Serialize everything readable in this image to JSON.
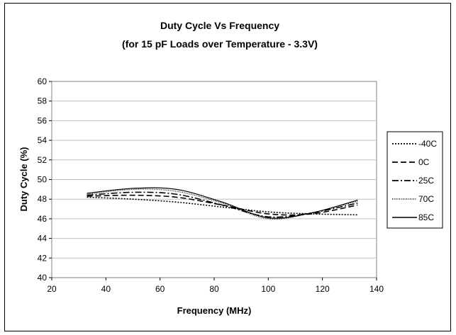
{
  "chart_data": {
    "type": "line",
    "title": "Duty Cycle Vs Frequency",
    "subtitle": "(for 15 pF Loads over Temperature - 3.3V)",
    "xlabel": "Frequency (MHz)",
    "ylabel": "Duty Cycle (%)",
    "xlim": [
      20,
      140
    ],
    "ylim": [
      40,
      60
    ],
    "xticks": [
      20,
      40,
      60,
      80,
      100,
      120,
      140
    ],
    "yticks": [
      40,
      42,
      44,
      46,
      48,
      50,
      52,
      54,
      56,
      58,
      60
    ],
    "grid": "horizontal",
    "legend": "right",
    "x": [
      33,
      50,
      66,
      83,
      100,
      116,
      133
    ],
    "series": [
      {
        "name": "-40C",
        "dash": "dotted",
        "color": "#000000",
        "values": [
          48.2,
          48.0,
          47.7,
          47.2,
          46.7,
          46.5,
          46.4
        ]
      },
      {
        "name": "0C",
        "dash": "dashed",
        "color": "#000000",
        "values": [
          48.3,
          48.4,
          48.2,
          47.4,
          46.5,
          46.5,
          47.4
        ]
      },
      {
        "name": "25C",
        "dash": "dashdot",
        "color": "#000000",
        "values": [
          48.4,
          48.7,
          48.5,
          47.4,
          46.2,
          46.6,
          47.6
        ]
      },
      {
        "name": "70C",
        "dash": "fine-dotted",
        "color": "#000000",
        "values": [
          48.5,
          49.0,
          48.8,
          47.6,
          46.0,
          46.6,
          47.8
        ]
      },
      {
        "name": "85C",
        "dash": "solid",
        "color": "#000000",
        "values": [
          48.6,
          49.1,
          49.0,
          47.7,
          46.1,
          46.6,
          47.9
        ]
      }
    ]
  }
}
